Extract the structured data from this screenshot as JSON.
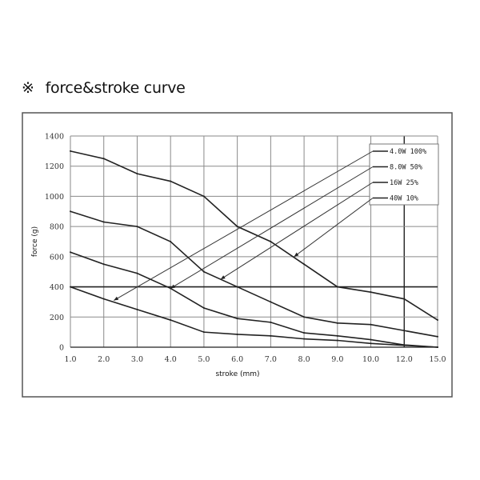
{
  "heading": {
    "mark": "※",
    "text": "force&stroke curve"
  },
  "chart_data": {
    "type": "line",
    "title": "",
    "xlabel": "stroke (mm)",
    "ylabel": "force (g)",
    "x_scale": "categorical (equally spaced ticks)",
    "categories": [
      "1.0",
      "2.0",
      "3.0",
      "4.0",
      "5.0",
      "6.0",
      "7.0",
      "8.0",
      "9.0",
      "10.0",
      "12.0",
      "15.0"
    ],
    "x": [
      1,
      2,
      3,
      4,
      5,
      6,
      7,
      8,
      9,
      10,
      12,
      15
    ],
    "ylim": [
      0,
      1400
    ],
    "yticks": [
      0,
      200,
      400,
      600,
      800,
      1000,
      1200,
      1400
    ],
    "grid": true,
    "highlight_lines": {
      "y": 400,
      "x": 12
    },
    "legend_position": "top-right",
    "series": [
      {
        "name": "4.0W 100%",
        "values": [
          1300,
          1250,
          1150,
          1100,
          1000,
          800,
          700,
          550,
          400,
          365,
          320,
          180
        ],
        "arrow_to": {
          "x_index": 1.3,
          "y": 310
        }
      },
      {
        "name": "8.0W  50%",
        "values": [
          900,
          830,
          800,
          700,
          500,
          400,
          300,
          200,
          160,
          150,
          110,
          70
        ],
        "arrow_to": {
          "x_index": 3.0,
          "y": 390
        }
      },
      {
        "name": "16W  25%",
        "values": [
          630,
          550,
          490,
          390,
          260,
          190,
          165,
          95,
          75,
          50,
          15,
          0
        ],
        "arrow_to": {
          "x_index": 4.5,
          "y": 450
        }
      },
      {
        "name": "40W   10%",
        "values": [
          400,
          320,
          250,
          180,
          100,
          85,
          75,
          55,
          45,
          25,
          12,
          0
        ],
        "arrow_to": {
          "x_index": 6.7,
          "y": 600
        }
      }
    ],
    "colors": {
      "line": "#222222",
      "grid": "#8a8a8a",
      "frame": "#555555"
    }
  }
}
